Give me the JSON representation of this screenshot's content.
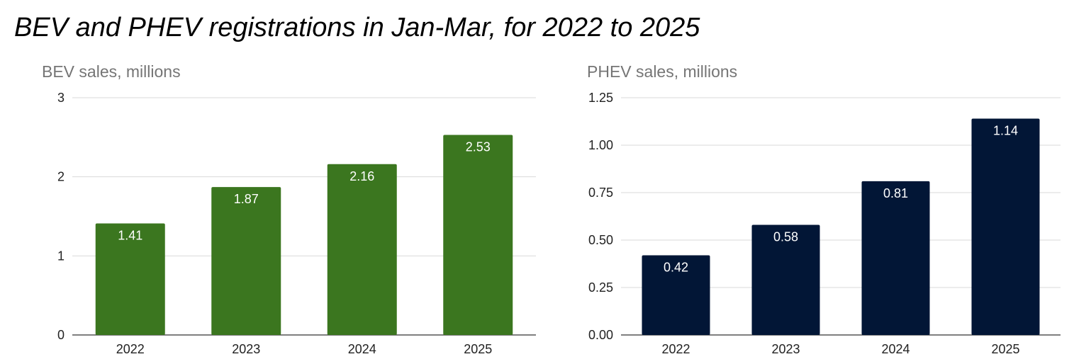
{
  "title": "BEV and PHEV registrations in Jan-Mar, for 2022 to 2025",
  "chart_data": [
    {
      "type": "bar",
      "title": "BEV sales, millions",
      "categories": [
        "2022",
        "2023",
        "2024",
        "2025"
      ],
      "values": [
        1.41,
        1.87,
        2.16,
        2.53
      ],
      "data_labels": [
        "1.41",
        "1.87",
        "2.16",
        "2.53"
      ],
      "ylim": [
        0,
        3
      ],
      "yticks": [
        0,
        1,
        2,
        3
      ],
      "ytick_labels": [
        "0",
        "1",
        "2",
        "3"
      ],
      "grid": true,
      "legend": "none",
      "color": "#3b761f"
    },
    {
      "type": "bar",
      "title": "PHEV sales, millions",
      "categories": [
        "2022",
        "2023",
        "2024",
        "2025"
      ],
      "values": [
        0.42,
        0.58,
        0.81,
        1.14
      ],
      "data_labels": [
        "0.42",
        "0.58",
        "0.81",
        "1.14"
      ],
      "ylim": [
        0,
        1.25
      ],
      "yticks": [
        0,
        0.25,
        0.5,
        0.75,
        1.0,
        1.25
      ],
      "ytick_labels": [
        "0.00",
        "0.25",
        "0.50",
        "0.75",
        "1.00",
        "1.25"
      ],
      "grid": true,
      "legend": "none",
      "color": "#021636"
    }
  ]
}
